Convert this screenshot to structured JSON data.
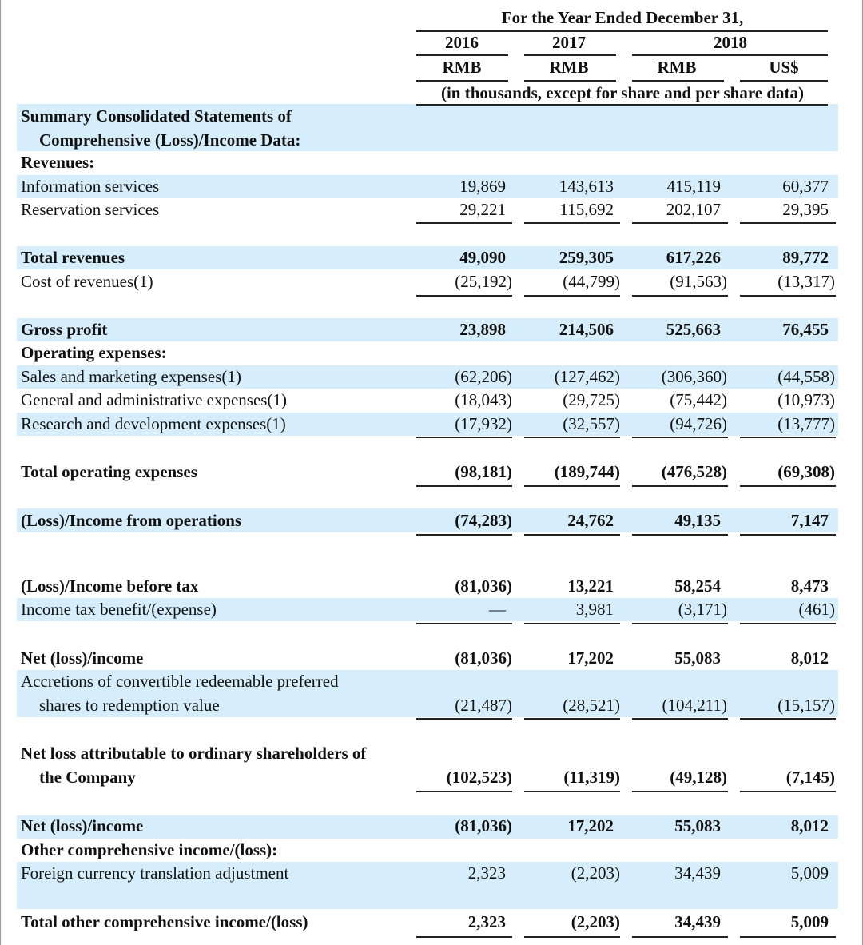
{
  "header": {
    "period": "For the Year Ended December 31,",
    "years": [
      "2016",
      "2017",
      "2018"
    ],
    "currencies": [
      "RMB",
      "RMB",
      "RMB",
      "US$"
    ],
    "note": "(in thousands, except for share and per share data)"
  },
  "table": {
    "rows": [
      {
        "label": [
          "Summary Consolidated Statements of",
          "Comprehensive (Loss)/Income Data:"
        ]
      },
      {
        "label": [
          "Revenues:"
        ]
      },
      {
        "label": [
          "Information services"
        ],
        "values": [
          "19,869",
          "143,613",
          "415,119",
          "60,377"
        ]
      },
      {
        "label": [
          "Reservation services"
        ],
        "values": [
          "29,221",
          "115,692",
          "202,107",
          "29,395"
        ]
      },
      {
        "label": [
          "Total revenues"
        ],
        "values": [
          "49,090",
          "259,305",
          "617,226",
          "89,772"
        ]
      },
      {
        "label": [
          "Cost of revenues(1)"
        ],
        "values": [
          "(25,192)",
          "(44,799)",
          "(91,563)",
          "(13,317)"
        ]
      },
      {
        "label": [
          "Gross profit"
        ],
        "values": [
          "23,898",
          "214,506",
          "525,663",
          "76,455"
        ]
      },
      {
        "label": [
          "Operating expenses:"
        ]
      },
      {
        "label": [
          "Sales and marketing expenses(1)"
        ],
        "values": [
          "(62,206)",
          "(127,462)",
          "(306,360)",
          "(44,558)"
        ]
      },
      {
        "label": [
          "General and administrative expenses(1)"
        ],
        "values": [
          "(18,043)",
          "(29,725)",
          "(75,442)",
          "(10,973)"
        ]
      },
      {
        "label": [
          "Research and development expenses(1)"
        ],
        "values": [
          "(17,932)",
          "(32,557)",
          "(94,726)",
          "(13,777)"
        ]
      },
      {
        "label": [
          "Total operating expenses"
        ],
        "values": [
          "(98,181)",
          "(189,744)",
          "(476,528)",
          "(69,308)"
        ]
      },
      {
        "label": [
          "(Loss)/Income from operations"
        ],
        "values": [
          "(74,283)",
          "24,762",
          "49,135",
          "7,147"
        ]
      },
      {
        "label": [
          "(Loss)/Income before tax"
        ],
        "values": [
          "(81,036)",
          "13,221",
          "58,254",
          "8,473"
        ]
      },
      {
        "label": [
          "Income tax benefit/(expense)"
        ],
        "values": [
          "—",
          "3,981",
          "(3,171)",
          "(461)"
        ]
      },
      {
        "label": [
          "Net (loss)/income"
        ],
        "values": [
          "(81,036)",
          "17,202",
          "55,083",
          "8,012"
        ]
      },
      {
        "label": [
          "Accretions of convertible redeemable preferred",
          "shares to redemption value"
        ],
        "values": [
          "(21,487)",
          "(28,521)",
          "(104,211)",
          "(15,157)"
        ]
      },
      {
        "label": [
          "Net loss attributable to ordinary shareholders of",
          "the Company"
        ],
        "values": [
          "(102,523)",
          "(11,319)",
          "(49,128)",
          "(7,145)"
        ]
      },
      {
        "label": [
          "Net (loss)/income"
        ],
        "values": [
          "(81,036)",
          "17,202",
          "55,083",
          "8,012"
        ]
      },
      {
        "label": [
          "Other comprehensive income/(loss):"
        ]
      },
      {
        "label": [
          "Foreign currency translation adjustment"
        ],
        "values": [
          "2,323",
          "(2,203)",
          "34,439",
          "5,009"
        ]
      },
      {
        "label": [
          "Total other comprehensive income/(loss)"
        ],
        "values": [
          "2,323",
          "(2,203)",
          "34,439",
          "5,009"
        ]
      }
    ]
  }
}
